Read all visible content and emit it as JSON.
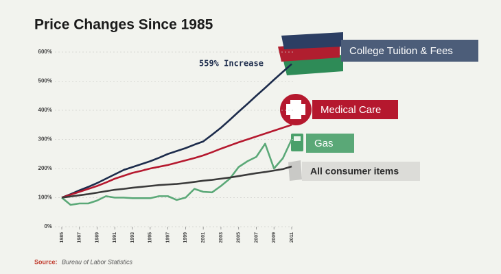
{
  "chart_data": {
    "type": "line",
    "title": "Price Changes Since 1985",
    "x": [
      1985,
      1986,
      1987,
      1988,
      1989,
      1990,
      1991,
      1992,
      1993,
      1994,
      1995,
      1996,
      1997,
      1998,
      1999,
      2000,
      2001,
      2002,
      2003,
      2004,
      2005,
      2006,
      2007,
      2008,
      2009,
      2010,
      2011
    ],
    "series": [
      {
        "name": "College Tuition & Fees",
        "color": "#1c2b4b",
        "values": [
          100,
          112,
          125,
          137,
          150,
          165,
          180,
          195,
          205,
          215,
          225,
          237,
          250,
          260,
          270,
          282,
          293,
          316,
          340,
          367,
          395,
          422,
          450,
          477,
          505,
          532,
          559
        ]
      },
      {
        "name": "Medical Care",
        "color": "#b5182e",
        "values": [
          100,
          110,
          120,
          130,
          140,
          152,
          165,
          175,
          185,
          192,
          200,
          206,
          212,
          220,
          228,
          236,
          245,
          256,
          268,
          279,
          290,
          300,
          310,
          320,
          330,
          340,
          350
        ]
      },
      {
        "name": "Gas",
        "color": "#5aa877",
        "values": [
          100,
          75,
          80,
          80,
          90,
          105,
          100,
          100,
          98,
          98,
          98,
          105,
          105,
          92,
          100,
          130,
          120,
          118,
          140,
          165,
          205,
          225,
          240,
          285,
          200,
          235,
          300
        ]
      },
      {
        "name": "All consumer items",
        "color": "#3a3a3a",
        "values": [
          100,
          104,
          108,
          112,
          117,
          122,
          127,
          130,
          134,
          137,
          140,
          143,
          145,
          147,
          150,
          154,
          158,
          161,
          165,
          169,
          174,
          179,
          184,
          188,
          193,
          198,
          207
        ]
      }
    ],
    "annotation": "559% Increase",
    "source_label": "Source:",
    "source_text": "Bureau of Labor Statistics",
    "xlim": [
      1985,
      2011
    ],
    "xticks": [
      1985,
      1987,
      1989,
      1991,
      1993,
      1995,
      1997,
      1999,
      2001,
      2003,
      2005,
      2007,
      2009,
      2011
    ],
    "ylim": [
      0,
      600
    ],
    "yticks": [
      {
        "value": 0,
        "label": "0%"
      },
      {
        "value": 100,
        "label": "100%"
      },
      {
        "value": 200,
        "label": "200%"
      },
      {
        "value": 300,
        "label": "300%"
      },
      {
        "value": 400,
        "label": "400%"
      },
      {
        "value": 500,
        "label": "500%"
      },
      {
        "value": 600,
        "label": "600%"
      }
    ],
    "grid": true
  }
}
